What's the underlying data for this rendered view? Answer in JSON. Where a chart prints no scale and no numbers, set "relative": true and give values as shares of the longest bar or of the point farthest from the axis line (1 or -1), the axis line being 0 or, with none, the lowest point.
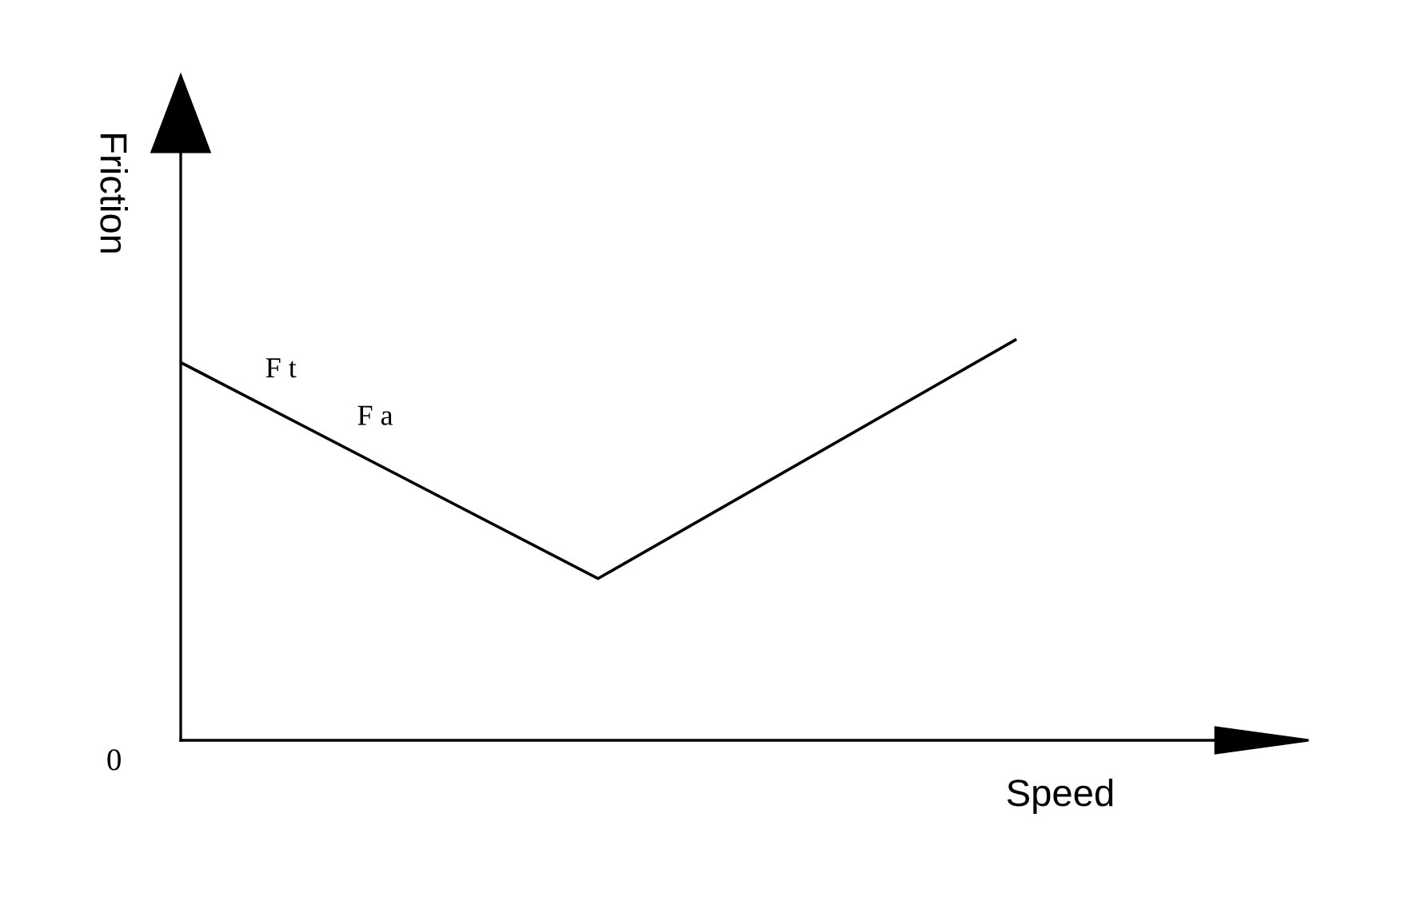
{
  "chart_data": {
    "type": "line",
    "relative": true,
    "xlabel": "Speed",
    "ylabel": "Friction",
    "categories": [
      null,
      null,
      null
    ],
    "series": [
      {
        "color": "#000000",
        "values": [
          0.944,
          0.404,
          1.0
        ]
      }
    ],
    "annotations": [
      "F t",
      "F a",
      "0"
    ],
    "marker": "none",
    "line_style": "solid"
  }
}
